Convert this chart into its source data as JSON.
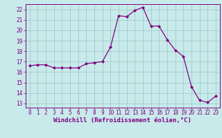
{
  "x": [
    0,
    1,
    2,
    3,
    4,
    5,
    6,
    7,
    8,
    9,
    10,
    11,
    12,
    13,
    14,
    15,
    16,
    17,
    18,
    19,
    20,
    21,
    22,
    23
  ],
  "y": [
    16.6,
    16.7,
    16.7,
    16.4,
    16.4,
    16.4,
    16.4,
    16.8,
    16.9,
    17.0,
    18.4,
    21.4,
    21.3,
    21.9,
    22.2,
    20.4,
    20.4,
    19.1,
    18.1,
    17.5,
    14.6,
    13.3,
    13.1,
    13.7
  ],
  "line_color": "#800080",
  "marker": "D",
  "marker_size": 2,
  "bg_color": "#c8eaea",
  "grid_color": "#a0cccc",
  "xlabel": "Windchill (Refroidissement éolien,°C)",
  "xlabel_color": "#800080",
  "ylabel_ticks": [
    13,
    14,
    15,
    16,
    17,
    18,
    19,
    20,
    21,
    22
  ],
  "xticks": [
    0,
    1,
    2,
    3,
    4,
    5,
    6,
    7,
    8,
    9,
    10,
    11,
    12,
    13,
    14,
    15,
    16,
    17,
    18,
    19,
    20,
    21,
    22,
    23
  ],
  "ylim": [
    12.6,
    22.5
  ],
  "xlim": [
    -0.5,
    23.5
  ],
  "tick_color": "#800080",
  "tick_fontsize": 5.5,
  "xlabel_fontsize": 6.5,
  "linewidth": 0.9
}
